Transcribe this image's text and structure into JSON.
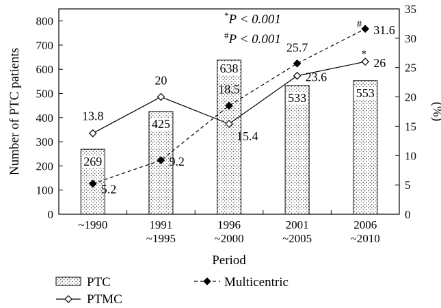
{
  "chart_data": {
    "type": "bar",
    "categories": [
      [
        "~1990"
      ],
      [
        "1991",
        "~1995"
      ],
      [
        "1996",
        "~2000"
      ],
      [
        "2001",
        "~2005"
      ],
      [
        "2006",
        "~2010"
      ]
    ],
    "xlabel": "Period",
    "ylabel_left": "Number of PTC patients",
    "ylabel_right": "(%)",
    "ylim_left": [
      0,
      850
    ],
    "ylim_right": [
      0,
      35
    ],
    "yticks_left": [
      0,
      100,
      200,
      300,
      400,
      500,
      600,
      700,
      800
    ],
    "yticks_right": [
      0,
      5,
      10,
      15,
      20,
      25,
      30,
      35
    ],
    "grid": false,
    "legend_position": "bottom",
    "series": [
      {
        "name": "PTC",
        "type": "bar",
        "axis": "left",
        "values": [
          269,
          425,
          638,
          533,
          553
        ],
        "labels": [
          "269",
          "425",
          "638",
          "533",
          "553"
        ]
      },
      {
        "name": "PTMC",
        "type": "line",
        "axis": "right",
        "marker": "open-diamond",
        "line_style": "solid",
        "values": [
          13.8,
          20,
          15.4,
          23.6,
          26
        ],
        "labels": [
          "13.8",
          "20",
          "15.4",
          "23.6",
          "26"
        ]
      },
      {
        "name": "Multicentric",
        "type": "line",
        "axis": "right",
        "marker": "filled-diamond",
        "line_style": "dashed",
        "values": [
          5.2,
          9.2,
          18.5,
          25.7,
          31.6
        ],
        "labels": [
          "5.2",
          "9.2",
          "18.5",
          "25.7",
          "31.6"
        ]
      }
    ],
    "annotations": {
      "stat_line_1": {
        "sup": "*",
        "text": "P < 0.001"
      },
      "stat_line_2": {
        "sup": "#",
        "text": "P < 0.001"
      },
      "star_mark": "*",
      "hash_mark": "#"
    }
  }
}
